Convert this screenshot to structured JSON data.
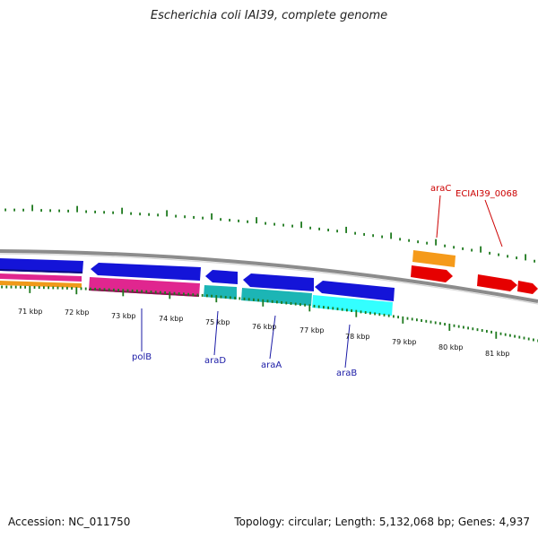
{
  "title": "Escherichia coli IAI39, complete genome",
  "footer": {
    "accession": "Accession: NC_011750",
    "info": "Topology: circular; Length: 5,132,068 bp; Genes: 4,937"
  },
  "colors": {
    "ruler": "#1f7a1f",
    "backbone": "#8c8c8c",
    "blue_label": "#1a1aa6",
    "red_label": "#cc0000"
  },
  "ruler": {
    "ticks": [
      {
        "label": "71 kbp"
      },
      {
        "label": "72 kbp"
      },
      {
        "label": "73 kbp"
      },
      {
        "label": "74 kbp"
      },
      {
        "label": "75 kbp"
      },
      {
        "label": "76 kbp"
      },
      {
        "label": "77 kbp"
      },
      {
        "label": "78 kbp"
      },
      {
        "label": "79 kbp"
      },
      {
        "label": "80 kbp"
      },
      {
        "label": "81 kbp"
      }
    ]
  },
  "gene_labels": [
    {
      "text": "polB",
      "color": "#1a1aa6"
    },
    {
      "text": "araD",
      "color": "#1a1aa6"
    },
    {
      "text": "araA",
      "color": "#1a1aa6"
    },
    {
      "text": "araB",
      "color": "#1a1aa6"
    },
    {
      "text": "araC",
      "color": "#cc0000"
    },
    {
      "text": "ECIAI39_0068",
      "color": "#cc0000"
    }
  ]
}
